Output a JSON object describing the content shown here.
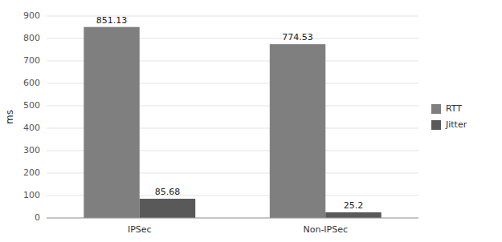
{
  "chart_data": {
    "type": "bar",
    "ylabel": "ms",
    "categories": [
      "IPSec",
      "Non-IPSec"
    ],
    "series": [
      {
        "name": "RTT",
        "color": "#7f7f7f",
        "values": [
          851.13,
          774.53
        ]
      },
      {
        "name": "Jitter",
        "color": "#595959",
        "values": [
          85.68,
          25.2
        ]
      }
    ],
    "ylim": [
      0,
      900
    ],
    "yticks": [
      0,
      100,
      200,
      300,
      400,
      500,
      600,
      700,
      800,
      900
    ],
    "grid": true,
    "legend": "right",
    "data_labels": true
  }
}
